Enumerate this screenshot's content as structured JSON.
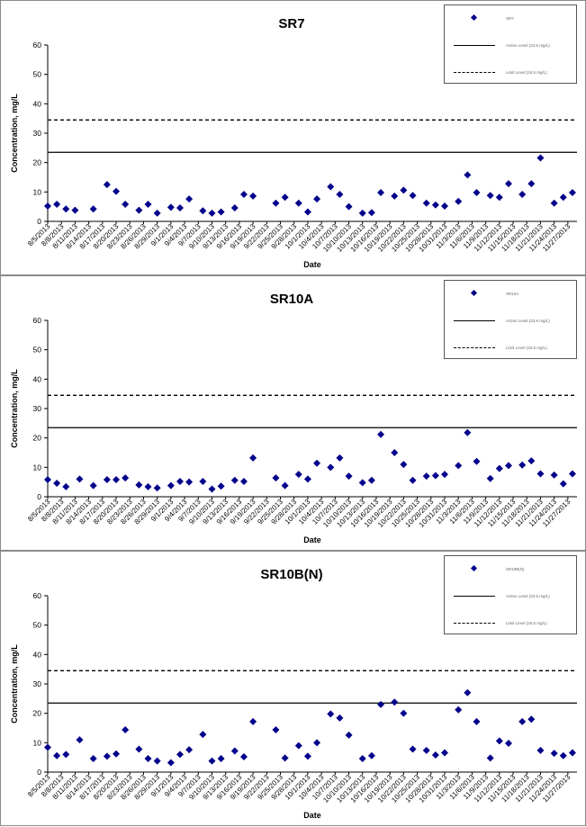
{
  "chart_data": [
    {
      "type": "scatter",
      "title": "SR7",
      "xlabel": "Date",
      "ylabel": "Concentration, mg/L",
      "ylim": [
        0,
        60
      ],
      "yticks": [
        0,
        10,
        20,
        30,
        40,
        50,
        60
      ],
      "xlim": [
        "8/5/2013",
        "11/29/2013"
      ],
      "xticks": [
        "8/5/2013",
        "8/8/2013",
        "8/11/2013",
        "8/14/2013",
        "8/17/2013",
        "8/20/2013",
        "8/23/2013",
        "8/26/2013",
        "8/29/2013",
        "9/1/2013",
        "9/4/2013",
        "9/7/2013",
        "9/10/2013",
        "9/13/2013",
        "9/16/2013",
        "9/19/2013",
        "9/22/2013",
        "9/25/2013",
        "9/28/2013",
        "10/1/2013",
        "10/4/2013",
        "10/7/2013",
        "10/10/2013",
        "10/13/2013",
        "10/16/2013",
        "10/19/2013",
        "10/22/2013",
        "10/25/2013",
        "10/28/2013",
        "10/31/2013",
        "11/3/2013",
        "11/6/2013",
        "11/9/2013",
        "11/12/2013",
        "11/15/2013",
        "11/18/2013",
        "11/21/2013",
        "11/24/2013",
        "11/27/2013"
      ],
      "grid": false,
      "legend_position": "top-right",
      "legend": [
        "SR7",
        "Action Level (23.5 mg/L)",
        "Limit Level (34.5 mg/L)"
      ],
      "reference_lines": [
        {
          "name": "Action Level (23.5 mg/L)",
          "value": 23.5,
          "style": "solid"
        },
        {
          "name": "Limit Level (34.5 mg/L)",
          "value": 34.5,
          "style": "dashed"
        }
      ],
      "series": [
        {
          "name": "SR7",
          "color": "#00008B",
          "marker": "diamond",
          "points": [
            [
              "8/5/2013",
              5.2
            ],
            [
              "8/7/2013",
              5.8
            ],
            [
              "8/9/2013",
              4.2
            ],
            [
              "8/11/2013",
              3.8
            ],
            [
              "8/15/2013",
              4.2
            ],
            [
              "8/18/2013",
              12.5
            ],
            [
              "8/20/2013",
              10.2
            ],
            [
              "8/22/2013",
              5.8
            ],
            [
              "8/25/2013",
              3.8
            ],
            [
              "8/27/2013",
              5.8
            ],
            [
              "8/29/2013",
              2.8
            ],
            [
              "9/1/2013",
              4.8
            ],
            [
              "9/3/2013",
              4.6
            ],
            [
              "9/5/2013",
              7.6
            ],
            [
              "9/8/2013",
              3.6
            ],
            [
              "9/10/2013",
              2.8
            ],
            [
              "9/12/2013",
              3.2
            ],
            [
              "9/15/2013",
              4.6
            ],
            [
              "9/17/2013",
              9.2
            ],
            [
              "9/19/2013",
              8.6
            ],
            [
              "9/24/2013",
              6.2
            ],
            [
              "9/26/2013",
              8.2
            ],
            [
              "9/29/2013",
              6.2
            ],
            [
              "10/1/2013",
              3.2
            ],
            [
              "10/3/2013",
              7.6
            ],
            [
              "10/6/2013",
              11.8
            ],
            [
              "10/8/2013",
              9.2
            ],
            [
              "10/10/2013",
              5.0
            ],
            [
              "10/13/2013",
              2.8
            ],
            [
              "10/15/2013",
              3.0
            ],
            [
              "10/17/2013",
              9.8
            ],
            [
              "10/20/2013",
              8.6
            ],
            [
              "10/22/2013",
              10.6
            ],
            [
              "10/24/2013",
              8.8
            ],
            [
              "10/27/2013",
              6.2
            ],
            [
              "10/29/2013",
              5.6
            ],
            [
              "10/31/2013",
              5.2
            ],
            [
              "11/3/2013",
              6.8
            ],
            [
              "11/5/2013",
              15.8
            ],
            [
              "11/7/2013",
              9.8
            ],
            [
              "11/10/2013",
              8.8
            ],
            [
              "11/12/2013",
              8.2
            ],
            [
              "11/14/2013",
              12.8
            ],
            [
              "11/17/2013",
              9.2
            ],
            [
              "11/19/2013",
              12.8
            ],
            [
              "11/21/2013",
              21.6
            ],
            [
              "11/24/2013",
              6.2
            ],
            [
              "11/26/2013",
              8.2
            ],
            [
              "11/28/2013",
              9.8
            ]
          ]
        }
      ]
    },
    {
      "type": "scatter",
      "title": "SR10A",
      "xlabel": "Date",
      "ylabel": "Concentration, mg/L",
      "ylim": [
        0,
        60
      ],
      "yticks": [
        0,
        10,
        20,
        30,
        40,
        50,
        60
      ],
      "xlim": [
        "8/5/2013",
        "11/29/2013"
      ],
      "xticks": [
        "8/5/2013",
        "8/8/2013",
        "8/11/2013",
        "8/14/2013",
        "8/17/2013",
        "8/20/2013",
        "8/23/2013",
        "8/26/2013",
        "8/29/2013",
        "9/1/2013",
        "9/4/2013",
        "9/7/2013",
        "9/10/2013",
        "9/13/2013",
        "9/16/2013",
        "9/19/2013",
        "9/22/2013",
        "9/25/2013",
        "9/28/2013",
        "10/1/2013",
        "10/4/2013",
        "10/7/2013",
        "10/10/2013",
        "10/13/2013",
        "10/16/2013",
        "10/19/2013",
        "10/22/2013",
        "10/25/2013",
        "10/28/2013",
        "10/31/2013",
        "11/3/2013",
        "11/6/2013",
        "11/9/2013",
        "11/12/2013",
        "11/15/2013",
        "11/18/2013",
        "11/21/2013",
        "11/24/2013",
        "11/27/2013"
      ],
      "grid": false,
      "legend_position": "top-right",
      "legend": [
        "SR10A",
        "Action Level (23.5 mg/L)",
        "Limit Level (34.5 mg/L)"
      ],
      "reference_lines": [
        {
          "name": "Action Level (23.5 mg/L)",
          "value": 23.5,
          "style": "solid"
        },
        {
          "name": "Limit Level (34.5 mg/L)",
          "value": 34.5,
          "style": "dashed"
        }
      ],
      "series": [
        {
          "name": "SR10A",
          "color": "#00008B",
          "marker": "diamond",
          "points": [
            [
              "8/5/2013",
              5.8
            ],
            [
              "8/7/2013",
              4.6
            ],
            [
              "8/9/2013",
              3.4
            ],
            [
              "8/12/2013",
              6.0
            ],
            [
              "8/15/2013",
              3.8
            ],
            [
              "8/18/2013",
              5.8
            ],
            [
              "8/20/2013",
              5.8
            ],
            [
              "8/22/2013",
              6.4
            ],
            [
              "8/25/2013",
              4.0
            ],
            [
              "8/27/2013",
              3.4
            ],
            [
              "8/29/2013",
              3.0
            ],
            [
              "9/1/2013",
              3.8
            ],
            [
              "9/3/2013",
              5.2
            ],
            [
              "9/5/2013",
              5.0
            ],
            [
              "9/8/2013",
              5.2
            ],
            [
              "9/10/2013",
              2.6
            ],
            [
              "9/12/2013",
              3.6
            ],
            [
              "9/15/2013",
              5.6
            ],
            [
              "9/17/2013",
              5.2
            ],
            [
              "9/19/2013",
              13.2
            ],
            [
              "9/24/2013",
              6.4
            ],
            [
              "9/26/2013",
              3.8
            ],
            [
              "9/29/2013",
              7.6
            ],
            [
              "10/1/2013",
              6.0
            ],
            [
              "10/3/2013",
              11.4
            ],
            [
              "10/6/2013",
              10.0
            ],
            [
              "10/8/2013",
              13.2
            ],
            [
              "10/10/2013",
              7.0
            ],
            [
              "10/13/2013",
              4.8
            ],
            [
              "10/15/2013",
              5.6
            ],
            [
              "10/17/2013",
              21.2
            ],
            [
              "10/20/2013",
              15.0
            ],
            [
              "10/22/2013",
              11.0
            ],
            [
              "10/24/2013",
              5.6
            ],
            [
              "10/27/2013",
              7.0
            ],
            [
              "10/29/2013",
              7.2
            ],
            [
              "10/31/2013",
              7.6
            ],
            [
              "11/3/2013",
              10.6
            ],
            [
              "11/5/2013",
              21.8
            ],
            [
              "11/7/2013",
              12.0
            ],
            [
              "11/10/2013",
              6.2
            ],
            [
              "11/12/2013",
              9.6
            ],
            [
              "11/14/2013",
              10.6
            ],
            [
              "11/17/2013",
              10.8
            ],
            [
              "11/19/2013",
              12.2
            ],
            [
              "11/21/2013",
              7.8
            ],
            [
              "11/24/2013",
              7.4
            ],
            [
              "11/26/2013",
              4.4
            ],
            [
              "11/28/2013",
              7.8
            ]
          ]
        }
      ]
    },
    {
      "type": "scatter",
      "title": "SR10B(N)",
      "xlabel": "Date",
      "ylabel": "Concentration, mg/L",
      "ylim": [
        0,
        60
      ],
      "yticks": [
        0,
        10,
        20,
        30,
        40,
        50,
        60
      ],
      "xlim": [
        "8/5/2013",
        "11/29/2013"
      ],
      "xticks": [
        "8/5/2013",
        "8/8/2013",
        "8/11/2013",
        "8/14/2013",
        "8/17/2013",
        "8/20/2013",
        "8/23/2013",
        "8/26/2013",
        "8/29/2013",
        "9/1/2013",
        "9/4/2013",
        "9/7/2013",
        "9/10/2013",
        "9/13/2013",
        "9/16/2013",
        "9/19/2013",
        "9/22/2013",
        "9/25/2013",
        "9/28/2013",
        "10/1/2013",
        "10/4/2013",
        "10/7/2013",
        "10/10/2013",
        "10/13/2013",
        "10/16/2013",
        "10/19/2013",
        "10/22/2013",
        "10/25/2013",
        "10/28/2013",
        "10/31/2013",
        "11/3/2013",
        "11/6/2013",
        "11/9/2013",
        "11/12/2013",
        "11/15/2013",
        "11/18/2013",
        "11/21/2013",
        "11/24/2013",
        "11/27/2013"
      ],
      "grid": false,
      "legend_position": "top-right",
      "legend": [
        "SR10B(N)",
        "Action Level (23.5 mg/L)",
        "Limit Level (34.5 mg/L)"
      ],
      "reference_lines": [
        {
          "name": "Action Level (23.5 mg/L)",
          "value": 23.5,
          "style": "solid"
        },
        {
          "name": "Limit Level (34.5 mg/L)",
          "value": 34.5,
          "style": "dashed"
        }
      ],
      "series": [
        {
          "name": "SR10B(N)",
          "color": "#00008B",
          "marker": "diamond",
          "points": [
            [
              "8/5/2013",
              8.4
            ],
            [
              "8/7/2013",
              5.6
            ],
            [
              "8/9/2013",
              6.0
            ],
            [
              "8/12/2013",
              11.0
            ],
            [
              "8/15/2013",
              4.6
            ],
            [
              "8/18/2013",
              5.4
            ],
            [
              "8/20/2013",
              6.2
            ],
            [
              "8/22/2013",
              14.4
            ],
            [
              "8/25/2013",
              7.8
            ],
            [
              "8/27/2013",
              4.6
            ],
            [
              "8/29/2013",
              3.8
            ],
            [
              "9/1/2013",
              3.2
            ],
            [
              "9/3/2013",
              6.0
            ],
            [
              "9/5/2013",
              7.6
            ],
            [
              "9/8/2013",
              12.8
            ],
            [
              "9/10/2013",
              3.8
            ],
            [
              "9/12/2013",
              4.6
            ],
            [
              "9/15/2013",
              7.2
            ],
            [
              "9/17/2013",
              5.2
            ],
            [
              "9/19/2013",
              17.2
            ],
            [
              "9/24/2013",
              14.4
            ],
            [
              "9/26/2013",
              4.8
            ],
            [
              "9/29/2013",
              9.0
            ],
            [
              "10/1/2013",
              5.4
            ],
            [
              "10/3/2013",
              10.0
            ],
            [
              "10/6/2013",
              19.8
            ],
            [
              "10/8/2013",
              18.4
            ],
            [
              "10/10/2013",
              12.6
            ],
            [
              "10/13/2013",
              4.6
            ],
            [
              "10/15/2013",
              5.6
            ],
            [
              "10/17/2013",
              23.0
            ],
            [
              "10/20/2013",
              23.8
            ],
            [
              "10/22/2013",
              20.0
            ],
            [
              "10/24/2013",
              7.8
            ],
            [
              "10/27/2013",
              7.4
            ],
            [
              "10/29/2013",
              5.8
            ],
            [
              "10/31/2013",
              6.6
            ],
            [
              "11/3/2013",
              21.2
            ],
            [
              "11/5/2013",
              27.0
            ],
            [
              "11/7/2013",
              17.2
            ],
            [
              "11/10/2013",
              4.8
            ],
            [
              "11/12/2013",
              10.6
            ],
            [
              "11/14/2013",
              9.8
            ],
            [
              "11/17/2013",
              17.2
            ],
            [
              "11/19/2013",
              18.0
            ],
            [
              "11/21/2013",
              7.4
            ],
            [
              "11/24/2013",
              6.4
            ],
            [
              "11/26/2013",
              5.6
            ],
            [
              "11/28/2013",
              6.6
            ]
          ]
        }
      ]
    }
  ],
  "colors": {
    "marker": "#00008B",
    "line": "#000000",
    "panel_border": "#8a8a8a"
  }
}
